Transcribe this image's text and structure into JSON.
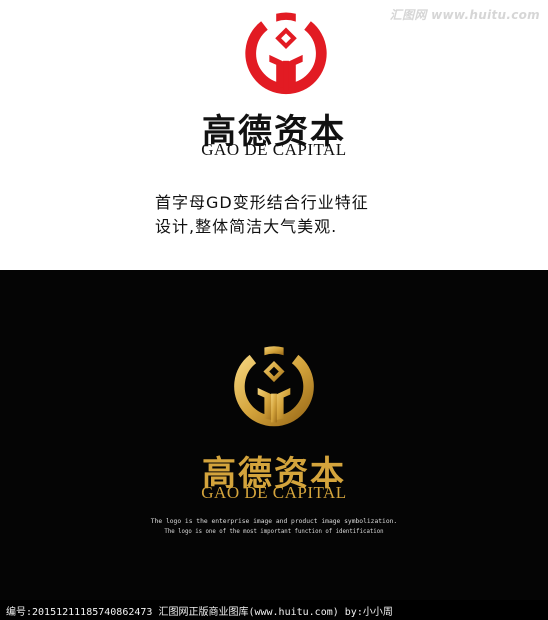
{
  "watermark": "汇图网 www.huitu.com",
  "logo": {
    "name_cn": "高德资本",
    "name_en": "GAO DE CAPITAL"
  },
  "description": {
    "line1": "首字母GD变形结合行业特征",
    "line2": "设计,整体简洁大气美观."
  },
  "dark_panel": {
    "name_cn": "高德资本",
    "name_en": "GAO DE CAPITAL",
    "tagline1": "The logo is the enterprise image and product image symbolization.",
    "tagline2": "The logo is one of the most important function of identification"
  },
  "footer": {
    "text": "编号:20151211185740862473  汇图网正版商业图库(www.huitu.com) by:小小周"
  },
  "colors": {
    "logo_red": "#e21b23",
    "gold": "#d4a43c",
    "dark_bg": "#050505"
  },
  "icons": {
    "light_logo": "gd-monogram-red",
    "dark_logo": "gd-monogram-gold"
  }
}
